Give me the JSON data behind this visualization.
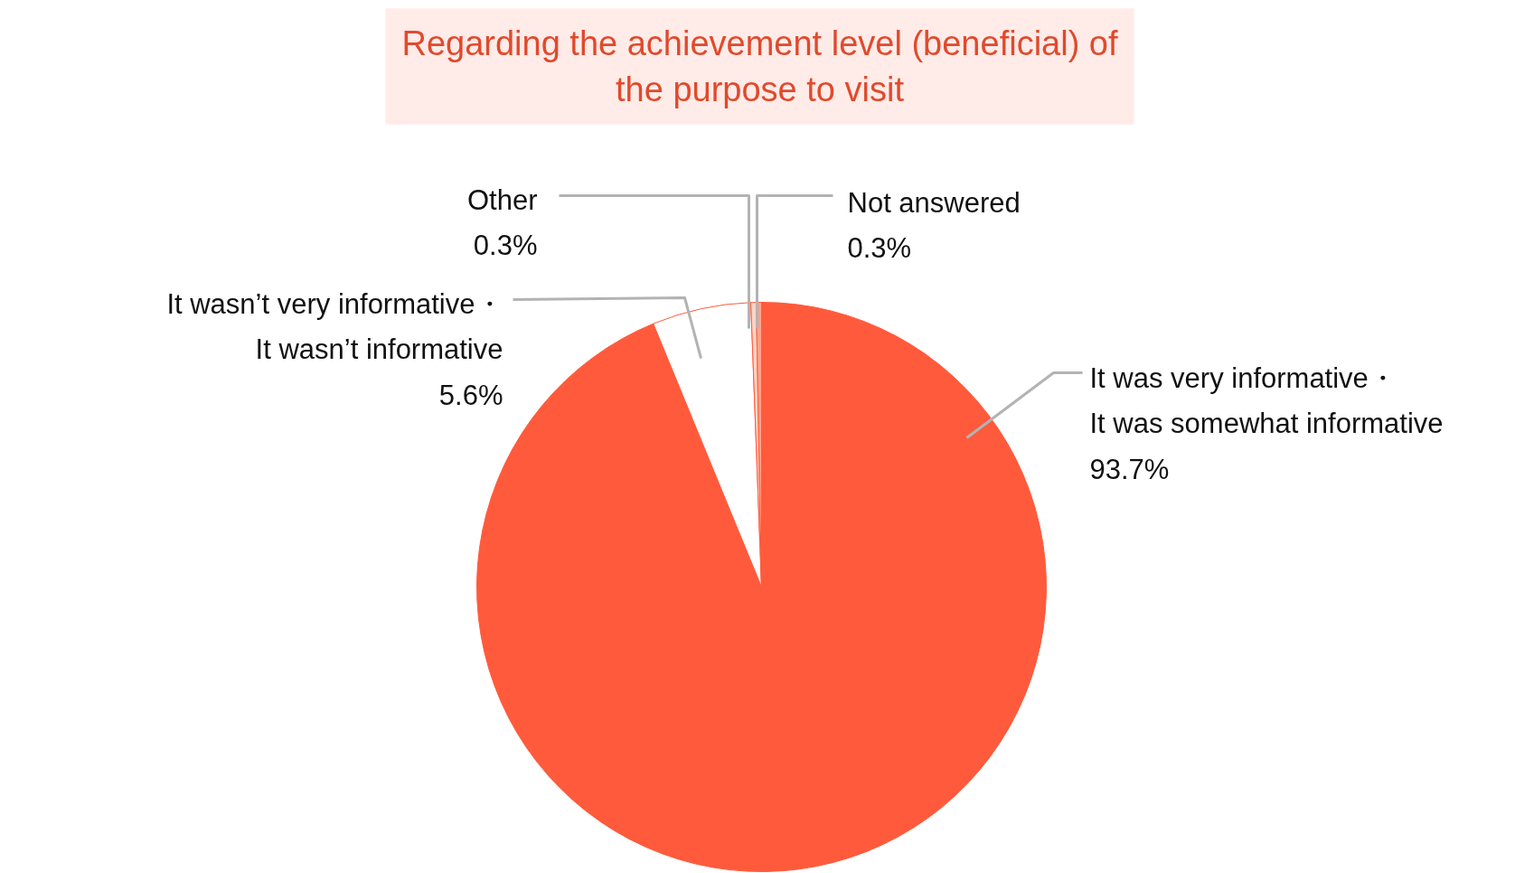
{
  "chart_data": {
    "type": "pie",
    "title": "Regarding the achievement level (beneficial) of\nthe purpose to visit",
    "categories": [
      "It was very informative・\nIt was somewhat informative",
      "It wasn’t very informative・\nIt wasn’t informative",
      "Other",
      "Not answered"
    ],
    "values": [
      93.7,
      5.6,
      0.3,
      0.3
    ],
    "value_labels": [
      "93.7%",
      "5.6%",
      "0.3%",
      "0.3%"
    ],
    "colors": [
      "#ff5a3c",
      "#ffffff",
      "#ffd5c8",
      "#ffa38c"
    ]
  }
}
